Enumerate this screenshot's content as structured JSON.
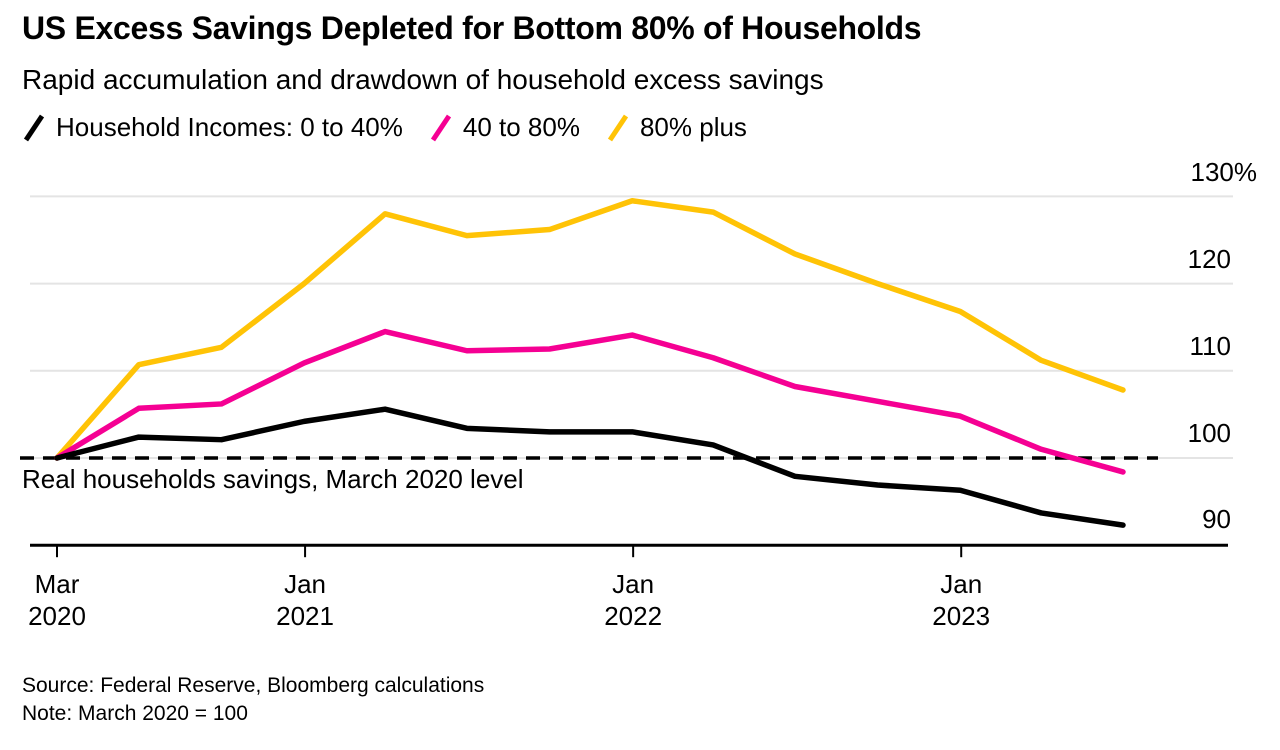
{
  "header": {
    "title": "US Excess Savings Depleted for Bottom 80% of Households",
    "subtitle": "Rapid accumulation and drawdown of household excess savings"
  },
  "annotation": {
    "text": "Real households savings, March 2020 level",
    "value": 100
  },
  "footer": {
    "source": "Source: Federal Reserve, Bloomberg calculations",
    "note": "Note: March 2020 = 100"
  },
  "chart_data": {
    "type": "line",
    "title": "US Excess Savings Depleted for Bottom 80% of Households",
    "subtitle": "Rapid accumulation and drawdown of household excess savings",
    "legend_position": "top",
    "grid": true,
    "grid_color": "#e4e4e4",
    "axis_color": "#000000",
    "baseline_color": "#000000",
    "ylim": [
      90,
      133.5
    ],
    "x_dates": [
      "2020-03-31",
      "2020-06-30",
      "2020-09-30",
      "2020-12-31",
      "2021-03-31",
      "2021-06-30",
      "2021-09-30",
      "2021-12-31",
      "2022-03-31",
      "2022-06-30",
      "2022-09-30",
      "2022-12-31",
      "2023-03-31",
      "2023-06-30"
    ],
    "series": [
      {
        "name": "Household Incomes: 0 to 40%",
        "color": "#000000",
        "values": [
          100,
          102.4,
          102.1,
          104.2,
          105.6,
          103.4,
          103.0,
          103.0,
          101.5,
          97.9,
          96.9,
          96.3,
          93.7,
          92.3
        ]
      },
      {
        "name": "40 to 80%",
        "color": "#f50093",
        "values": [
          100,
          105.7,
          106.2,
          110.9,
          114.5,
          112.3,
          112.5,
          114.1,
          111.5,
          108.2,
          106.5,
          104.8,
          101.0,
          98.4
        ]
      },
      {
        "name": "80% plus",
        "color": "#ffc306",
        "values": [
          100,
          110.7,
          112.7,
          120.0,
          128.0,
          125.5,
          126.2,
          129.5,
          128.2,
          123.4,
          120.0,
          116.8,
          111.2,
          107.8
        ]
      }
    ],
    "y_ticks": [
      {
        "label": "130%",
        "value": 130
      },
      {
        "label": "120",
        "value": 120
      },
      {
        "label": "110",
        "value": 110
      },
      {
        "label": "100",
        "value": 100
      },
      {
        "label": "90",
        "value": 90
      }
    ],
    "x_ticks": [
      {
        "month": "Mar",
        "year": "2020",
        "date": "2020-03-31"
      },
      {
        "month": "Jan",
        "year": "2021",
        "date": "2021-01-01"
      },
      {
        "month": "Jan",
        "year": "2022",
        "date": "2022-01-01"
      },
      {
        "month": "Jan",
        "year": "2023",
        "date": "2023-01-01"
      }
    ],
    "baseline": {
      "value": 100,
      "style": "dashed"
    }
  }
}
